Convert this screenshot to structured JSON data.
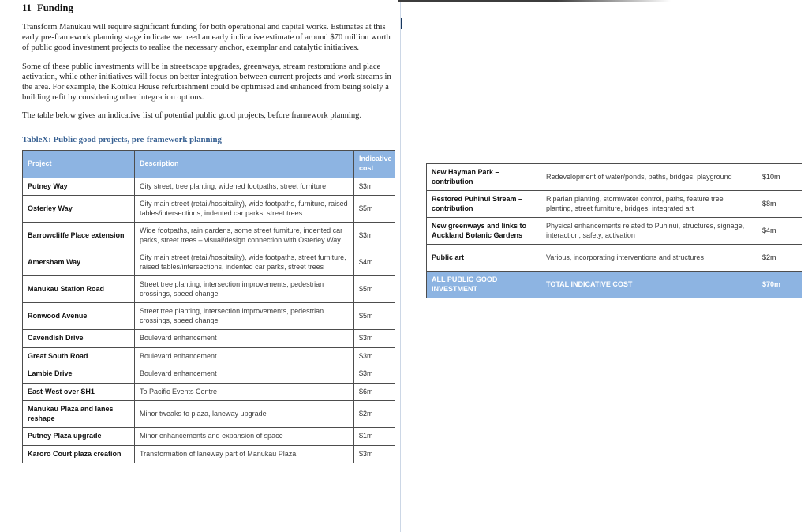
{
  "document": {
    "heading_number": "11",
    "heading_text": "Funding",
    "paragraphs": [
      "Transform Manukau will require significant funding for both operational and capital works. Estimates at this early pre-framework planning stage indicate we need an early indicative estimate of around $70 million worth of public good investment projects to realise the necessary anchor, exemplar and catalytic initiatives.",
      "Some of these public investments will be in streetscape upgrades, greenways, stream restorations and place activation, while other initiatives will focus on better integration between current projects and work streams in the area. For example, the Kotuku House refurbishment could be optimised and enhanced from being solely a building refit by considering other integration options.",
      "The table below gives an indicative list of potential public good projects, before framework planning."
    ],
    "table_title": "TableX: Public good projects, pre-framework planning"
  },
  "table": {
    "headers": [
      "Project",
      "Description",
      "Indicative cost"
    ],
    "left_rows": [
      {
        "project": "Putney Way",
        "description": "City street, tree planting, widened footpaths, street furniture",
        "cost": "$3m"
      },
      {
        "project": "Osterley Way",
        "description": "City main street (retail/hospitality), wide footpaths, furniture, raised tables/intersections, indented car parks, street trees",
        "cost": "$5m"
      },
      {
        "project": "Barrowcliffe Place extension",
        "description": "Wide footpaths, rain gardens, some street furniture, indented car parks, street trees – visual/design connection with Osterley Way",
        "cost": "$3m"
      },
      {
        "project": "Amersham Way",
        "description": "City main street (retail/hospitality), wide footpaths, street furniture, raised tables/intersections, indented car parks, street trees",
        "cost": "$4m"
      },
      {
        "project": "Manukau Station Road",
        "description": "Street tree planting, intersection improvements, pedestrian crossings, speed change",
        "cost": "$5m"
      },
      {
        "project": "Ronwood Avenue",
        "description": "Street tree planting, intersection improvements, pedestrian crossings, speed change",
        "cost": "$5m"
      },
      {
        "project": "Cavendish Drive",
        "description": "Boulevard enhancement",
        "cost": "$3m"
      },
      {
        "project": "Great South Road",
        "description": "Boulevard enhancement",
        "cost": "$3m"
      },
      {
        "project": "Lambie Drive",
        "description": "Boulevard enhancement",
        "cost": "$3m"
      },
      {
        "project": "East-West over SH1",
        "description": "To Pacific Events Centre",
        "cost": "$6m"
      },
      {
        "project": "Manukau Plaza and lanes reshape",
        "description": "Minor tweaks to plaza, laneway upgrade",
        "cost": "$2m"
      },
      {
        "project": "Putney Plaza upgrade",
        "description": "Minor enhancements and expansion of space",
        "cost": "$1m"
      },
      {
        "project": "Karoro Court plaza creation",
        "description": "Transformation of laneway part of Manukau Plaza",
        "cost": "$3m"
      }
    ],
    "right_rows": [
      {
        "project": "New Hayman Park – contribution",
        "description": "Redevelopment of water/ponds, paths, bridges, playground",
        "cost": "$10m"
      },
      {
        "project": "Restored Puhinui Stream – contribution",
        "description": "Riparian planting, stormwater control, paths, feature tree planting, street furniture, bridges, integrated art",
        "cost": "$8m"
      },
      {
        "project": "New greenways and links to Auckland Botanic Gardens",
        "description": "Physical enhancements related to Puhinui, structures, signage, interaction, safety, activation",
        "cost": "$4m"
      },
      {
        "project": "Public art",
        "description": "Various, incorporating interventions and structures",
        "cost": "$2m"
      }
    ],
    "total_row": {
      "project": "ALL PUBLIC GOOD INVESTMENT",
      "description": "TOTAL INDICATIVE COST",
      "cost": "$70m"
    }
  },
  "colors": {
    "header_bg": "#8DB4E2",
    "total_row_bg": "#8DB4E2",
    "table_title": "#376092",
    "cell_border": "#4d4d4d"
  }
}
